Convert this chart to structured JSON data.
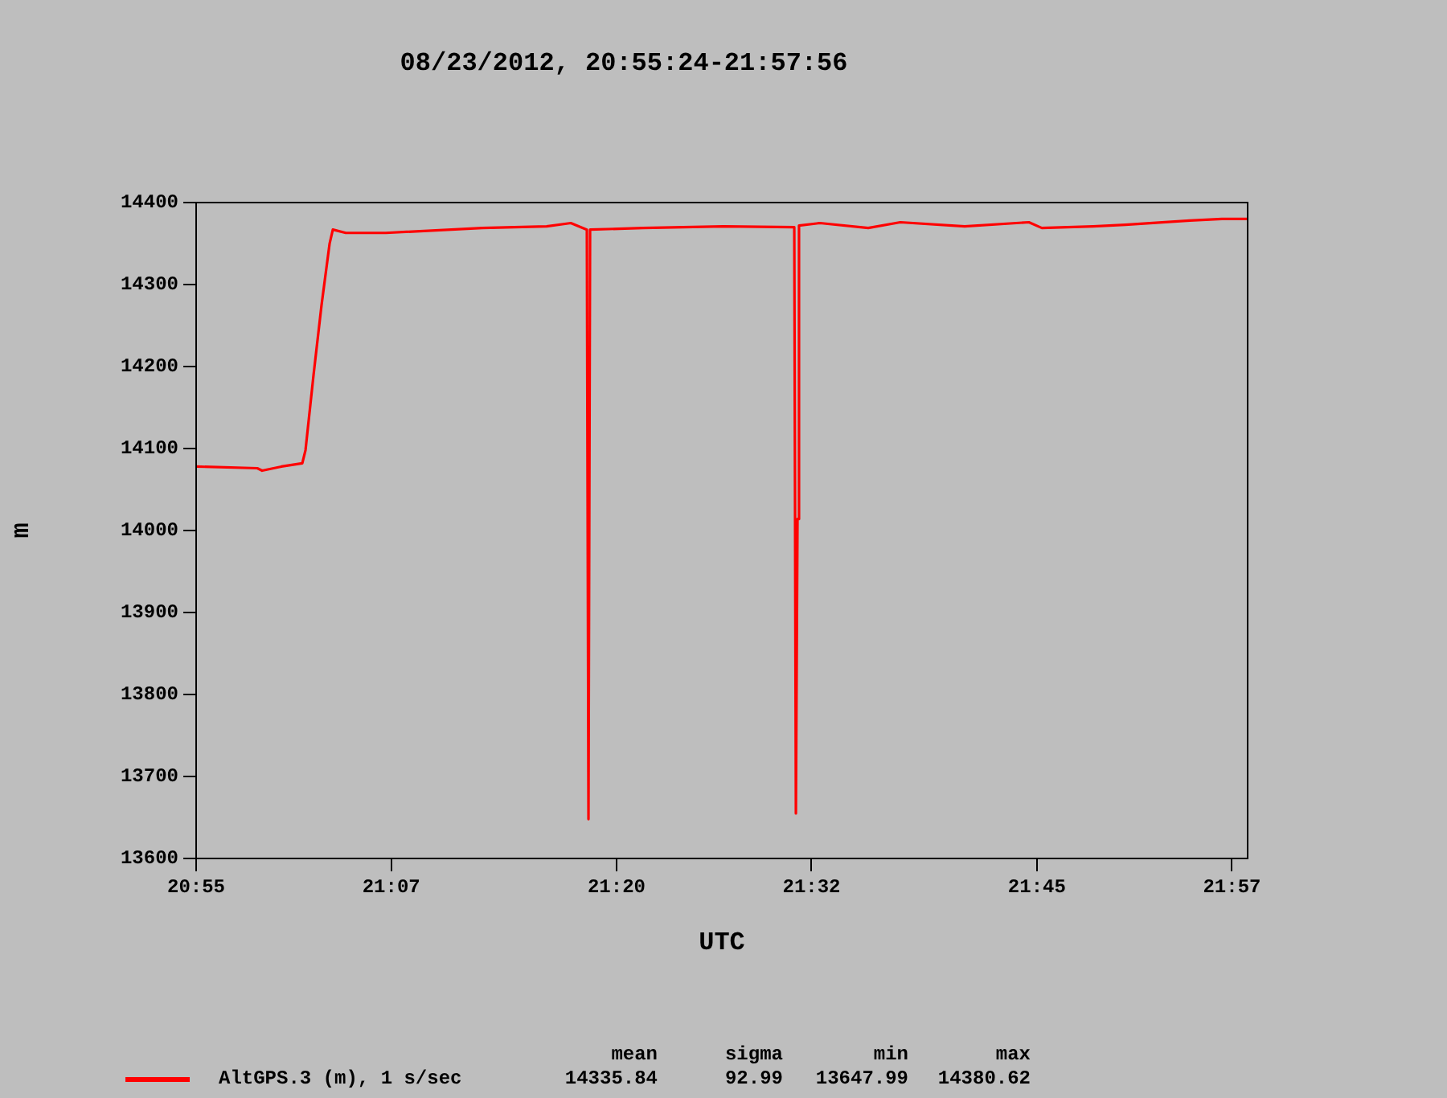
{
  "chart_data": {
    "type": "line",
    "title": "08/23/2012, 20:55:24-21:57:56",
    "xlabel": "UTC",
    "ylabel": "m",
    "x": [
      20.9233,
      20.9839,
      20.9887,
      21.0078,
      21.0285,
      21.0317,
      21.0397,
      21.0476,
      21.0556,
      21.0588,
      21.0716,
      21.1114,
      21.207,
      21.2707,
      21.2947,
      21.3106,
      21.3122,
      21.3138,
      21.3664,
      21.446,
      21.5162,
      21.5178,
      21.5194,
      21.5209,
      21.5417,
      21.5895,
      21.6213,
      21.6851,
      21.7488,
      21.7616,
      21.8126,
      21.8444,
      21.9082,
      21.9401,
      21.9656
    ],
    "series": [
      {
        "name": "AltGPS.3 (m), 1 s/sec",
        "color": "#ff0000",
        "values": [
          14078,
          14076,
          14073,
          14078,
          14082,
          14098,
          14190,
          14275,
          14350,
          14367,
          14363,
          14363,
          14369,
          14371,
          14375,
          14367,
          13648,
          14367,
          14369,
          14371,
          14370,
          13655,
          14014,
          14372,
          14375,
          14369,
          14376,
          14371,
          14376,
          14369,
          14371,
          14373,
          14378,
          14380,
          14380
        ]
      }
    ],
    "xlim": [
      20.9233,
      21.9656
    ],
    "xticks": [
      {
        "value": 20.9233,
        "label": "20:55"
      },
      {
        "value": 21.1167,
        "label": "21:07"
      },
      {
        "value": 21.34,
        "label": "21:20"
      },
      {
        "value": 21.5333,
        "label": "21:32"
      },
      {
        "value": 21.7567,
        "label": "21:45"
      },
      {
        "value": 21.95,
        "label": "21:57"
      }
    ],
    "ylim": [
      13600,
      14400
    ],
    "yticks": [
      13600,
      13700,
      13800,
      13900,
      14000,
      14100,
      14200,
      14300,
      14400
    ],
    "grid": false,
    "legend": "bottom",
    "marker": "none",
    "line_style": "solid",
    "annotations": [
      "mean",
      "sigma",
      "min",
      "max",
      "14335.84",
      "92.99",
      "13647.99",
      "14380.62"
    ]
  }
}
